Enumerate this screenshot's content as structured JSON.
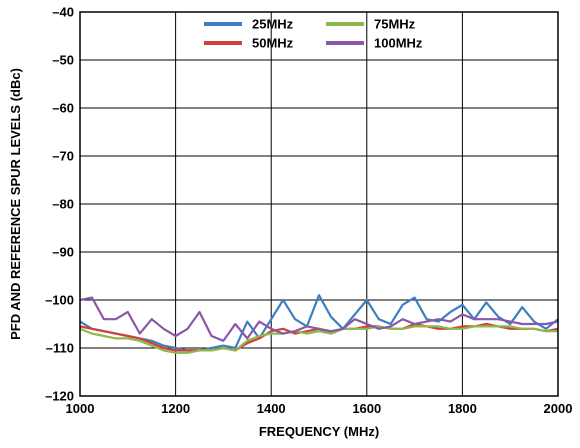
{
  "chart_data": {
    "type": "line",
    "title": "",
    "xlabel": "FREQUENCY (MHz)",
    "ylabel": "PFD AND REFERENCE SPUR LEVELS (dBc)",
    "xlim": [
      1000,
      2000
    ],
    "ylim": [
      -120,
      -40
    ],
    "xticks": [
      1000,
      1200,
      1400,
      1600,
      1800,
      2000
    ],
    "xtick_labels": [
      "1000",
      "1200",
      "1400",
      "1600",
      "1800",
      "2000"
    ],
    "yticks": [
      -40,
      -50,
      -60,
      -70,
      -80,
      -90,
      -100,
      -110,
      -120
    ],
    "ytick_labels": [
      "–40",
      "–50",
      "–60",
      "–70",
      "–80",
      "–90",
      "–100",
      "–110",
      "–120"
    ],
    "grid": true,
    "legend": "top-center",
    "series": [
      {
        "name": "25MHz",
        "color": "#3d7fc0",
        "x": [
          1000,
          1025,
          1050,
          1075,
          1100,
          1125,
          1150,
          1175,
          1200,
          1225,
          1250,
          1275,
          1300,
          1325,
          1350,
          1375,
          1400,
          1425,
          1450,
          1475,
          1500,
          1525,
          1550,
          1575,
          1600,
          1625,
          1650,
          1675,
          1700,
          1725,
          1750,
          1775,
          1800,
          1825,
          1850,
          1875,
          1900,
          1925,
          1950,
          1975,
          2000
        ],
        "values": [
          -104.5,
          -106,
          -106.5,
          -107,
          -107.5,
          -108,
          -108.5,
          -109.5,
          -110,
          -110.5,
          -110.5,
          -110,
          -109.5,
          -110,
          -104.5,
          -108,
          -104,
          -100,
          -104,
          -105.5,
          -99,
          -103.5,
          -106,
          -103,
          -100,
          -104,
          -105,
          -101,
          -99.5,
          -104,
          -104.5,
          -102.5,
          -101,
          -104,
          -100.5,
          -103.5,
          -105,
          -101.5,
          -104.5,
          -106,
          -104
        ]
      },
      {
        "name": "50MHz",
        "color": "#d0403a",
        "x": [
          1000,
          1025,
          1050,
          1075,
          1100,
          1125,
          1150,
          1175,
          1200,
          1225,
          1250,
          1275,
          1300,
          1325,
          1350,
          1375,
          1400,
          1425,
          1450,
          1475,
          1500,
          1525,
          1550,
          1575,
          1600,
          1625,
          1650,
          1675,
          1700,
          1725,
          1750,
          1775,
          1800,
          1825,
          1850,
          1875,
          1900,
          1925,
          1950,
          1975,
          2000
        ],
        "values": [
          -105.5,
          -106,
          -106.5,
          -107,
          -107.5,
          -108,
          -109,
          -110,
          -110.5,
          -110.5,
          -110.5,
          -110.5,
          -110,
          -110.5,
          -109,
          -108,
          -106.5,
          -106,
          -107,
          -106.5,
          -106,
          -107,
          -106,
          -106,
          -105.5,
          -105.5,
          -106,
          -106,
          -105,
          -105.5,
          -106,
          -106,
          -105.5,
          -105.5,
          -105,
          -105.5,
          -106,
          -106,
          -106,
          -106.5,
          -106
        ]
      },
      {
        "name": "75MHz",
        "color": "#8db84a",
        "x": [
          1000,
          1025,
          1050,
          1075,
          1100,
          1125,
          1150,
          1175,
          1200,
          1225,
          1250,
          1275,
          1300,
          1325,
          1350,
          1375,
          1400,
          1425,
          1450,
          1475,
          1500,
          1525,
          1550,
          1575,
          1600,
          1625,
          1650,
          1675,
          1700,
          1725,
          1750,
          1775,
          1800,
          1825,
          1850,
          1875,
          1900,
          1925,
          1950,
          1975,
          2000
        ],
        "values": [
          -106,
          -107,
          -107.5,
          -108,
          -108,
          -108.5,
          -109.5,
          -110.5,
          -111,
          -111,
          -110.5,
          -110.5,
          -110,
          -110.5,
          -108.5,
          -107.5,
          -107,
          -107,
          -106.5,
          -107,
          -106.5,
          -107,
          -106,
          -106,
          -106,
          -105.5,
          -106,
          -106,
          -105.5,
          -105.5,
          -105.5,
          -106,
          -106,
          -105.5,
          -105.5,
          -105.5,
          -105.5,
          -106,
          -106,
          -106.5,
          -106.5
        ]
      },
      {
        "name": "100MHz",
        "color": "#8a58a8",
        "x": [
          1000,
          1025,
          1050,
          1075,
          1100,
          1125,
          1150,
          1175,
          1200,
          1225,
          1250,
          1275,
          1300,
          1325,
          1350,
          1375,
          1400,
          1425,
          1450,
          1475,
          1500,
          1525,
          1550,
          1575,
          1600,
          1625,
          1650,
          1675,
          1700,
          1725,
          1750,
          1775,
          1800,
          1825,
          1850,
          1875,
          1900,
          1925,
          1950,
          1975,
          2000
        ],
        "values": [
          -100,
          -99.5,
          -104,
          -104,
          -102.5,
          -107,
          -104,
          -106,
          -107.5,
          -106,
          -102.5,
          -107.5,
          -108.5,
          -105,
          -108,
          -104.5,
          -106,
          -107,
          -106.5,
          -105.5,
          -106,
          -106.5,
          -106,
          -104,
          -105,
          -106,
          -105.5,
          -104,
          -105,
          -104.5,
          -104,
          -104.5,
          -103,
          -104,
          -104,
          -104,
          -104.5,
          -105,
          -105,
          -105,
          -104.5
        ]
      }
    ]
  }
}
